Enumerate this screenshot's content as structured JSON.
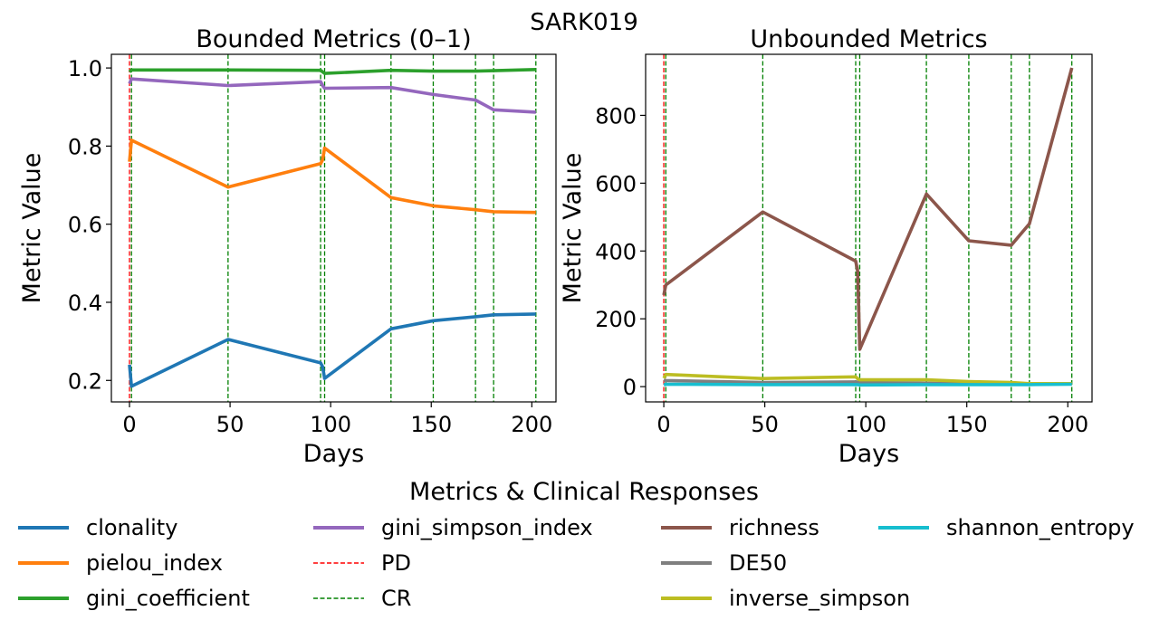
{
  "figure_title": "SARK019",
  "chart_data": [
    {
      "type": "line",
      "title": "Bounded Metrics (0–1)",
      "xlabel": "Days",
      "ylabel": "Metric Value",
      "xlim": [
        -9,
        212
      ],
      "ylim": [
        0.145,
        1.035
      ],
      "xticks": [
        0,
        50,
        100,
        150,
        200
      ],
      "yticks": [
        0.2,
        0.4,
        0.6,
        0.8,
        1.0
      ],
      "x": [
        0,
        1,
        49,
        95,
        96,
        97,
        130,
        151,
        172,
        181,
        202
      ],
      "series": [
        {
          "name": "clonality",
          "color": "#1f77b4",
          "values": [
            0.24,
            0.185,
            0.305,
            0.245,
            0.235,
            0.205,
            0.332,
            0.353,
            0.363,
            0.368,
            0.37
          ]
        },
        {
          "name": "pielou_index",
          "color": "#ff7f0e",
          "values": [
            0.76,
            0.815,
            0.695,
            0.755,
            0.765,
            0.795,
            0.668,
            0.647,
            0.637,
            0.632,
            0.63
          ]
        },
        {
          "name": "gini_coefficient",
          "color": "#2ca02c",
          "values": [
            0.99,
            0.995,
            0.995,
            0.994,
            0.99,
            0.986,
            0.994,
            0.992,
            0.992,
            0.993,
            0.996
          ]
        },
        {
          "name": "gini_simpson_index",
          "color": "#9467bd",
          "values": [
            0.96,
            0.972,
            0.955,
            0.965,
            0.955,
            0.948,
            0.95,
            0.932,
            0.918,
            0.893,
            0.887
          ]
        }
      ],
      "vlines": [
        {
          "name": "PD",
          "x": 0,
          "color": "#ff0000"
        },
        {
          "name": "CR",
          "x": 1,
          "color": "#008000"
        },
        {
          "name": "CR",
          "x": 49,
          "color": "#008000"
        },
        {
          "name": "CR",
          "x": 95,
          "color": "#008000"
        },
        {
          "name": "CR",
          "x": 97,
          "color": "#008000"
        },
        {
          "name": "CR",
          "x": 130,
          "color": "#008000"
        },
        {
          "name": "CR",
          "x": 151,
          "color": "#008000"
        },
        {
          "name": "CR",
          "x": 172,
          "color": "#008000"
        },
        {
          "name": "CR",
          "x": 181,
          "color": "#008000"
        },
        {
          "name": "CR",
          "x": 202,
          "color": "#008000"
        }
      ]
    },
    {
      "type": "line",
      "title": "Unbounded Metrics",
      "xlabel": "Days",
      "ylabel": "Metric Value",
      "xlim": [
        -9,
        212
      ],
      "ylim": [
        -45,
        980
      ],
      "xticks": [
        0,
        50,
        100,
        150,
        200
      ],
      "yticks": [
        0,
        200,
        400,
        600,
        800
      ],
      "x": [
        0,
        1,
        49,
        95,
        96,
        97,
        130,
        151,
        172,
        181,
        202
      ],
      "series": [
        {
          "name": "richness",
          "color": "#8c564b",
          "values": [
            270,
            300,
            515,
            370,
            340,
            110,
            568,
            430,
            417,
            480,
            940
          ]
        },
        {
          "name": "DE50",
          "color": "#7f7f7f",
          "values": [
            20,
            18,
            12,
            14,
            13,
            12,
            10,
            9,
            8,
            8,
            8
          ]
        },
        {
          "name": "inverse_simpson",
          "color": "#bcbd22",
          "values": [
            25,
            36,
            24,
            29,
            23,
            20,
            20,
            15,
            12,
            9,
            9
          ]
        },
        {
          "name": "shannon_entropy",
          "color": "#17becf",
          "values": [
            5,
            7,
            6,
            6,
            6,
            5,
            6,
            6,
            6,
            6,
            7
          ]
        }
      ],
      "vlines": [
        {
          "name": "PD",
          "x": 0,
          "color": "#ff0000"
        },
        {
          "name": "CR",
          "x": 1,
          "color": "#008000"
        },
        {
          "name": "CR",
          "x": 49,
          "color": "#008000"
        },
        {
          "name": "CR",
          "x": 95,
          "color": "#008000"
        },
        {
          "name": "CR",
          "x": 97,
          "color": "#008000"
        },
        {
          "name": "CR",
          "x": 130,
          "color": "#008000"
        },
        {
          "name": "CR",
          "x": 151,
          "color": "#008000"
        },
        {
          "name": "CR",
          "x": 172,
          "color": "#008000"
        },
        {
          "name": "CR",
          "x": 181,
          "color": "#008000"
        },
        {
          "name": "CR",
          "x": 202,
          "color": "#008000"
        }
      ]
    }
  ],
  "legend": {
    "title": "Metrics & Clinical Responses",
    "placement": "bottom-center",
    "entries": [
      {
        "label": "clonality",
        "color": "#1f77b4",
        "style": "solid"
      },
      {
        "label": "pielou_index",
        "color": "#ff7f0e",
        "style": "solid"
      },
      {
        "label": "gini_coefficient",
        "color": "#2ca02c",
        "style": "solid"
      },
      {
        "label": "gini_simpson_index",
        "color": "#9467bd",
        "style": "solid"
      },
      {
        "label": "PD",
        "color": "#ff0000",
        "style": "dashed"
      },
      {
        "label": "CR",
        "color": "#008000",
        "style": "dashed"
      },
      {
        "label": "richness",
        "color": "#8c564b",
        "style": "solid"
      },
      {
        "label": "DE50",
        "color": "#7f7f7f",
        "style": "solid"
      },
      {
        "label": "inverse_simpson",
        "color": "#bcbd22",
        "style": "solid"
      },
      {
        "label": "shannon_entropy",
        "color": "#17becf",
        "style": "solid"
      }
    ]
  }
}
